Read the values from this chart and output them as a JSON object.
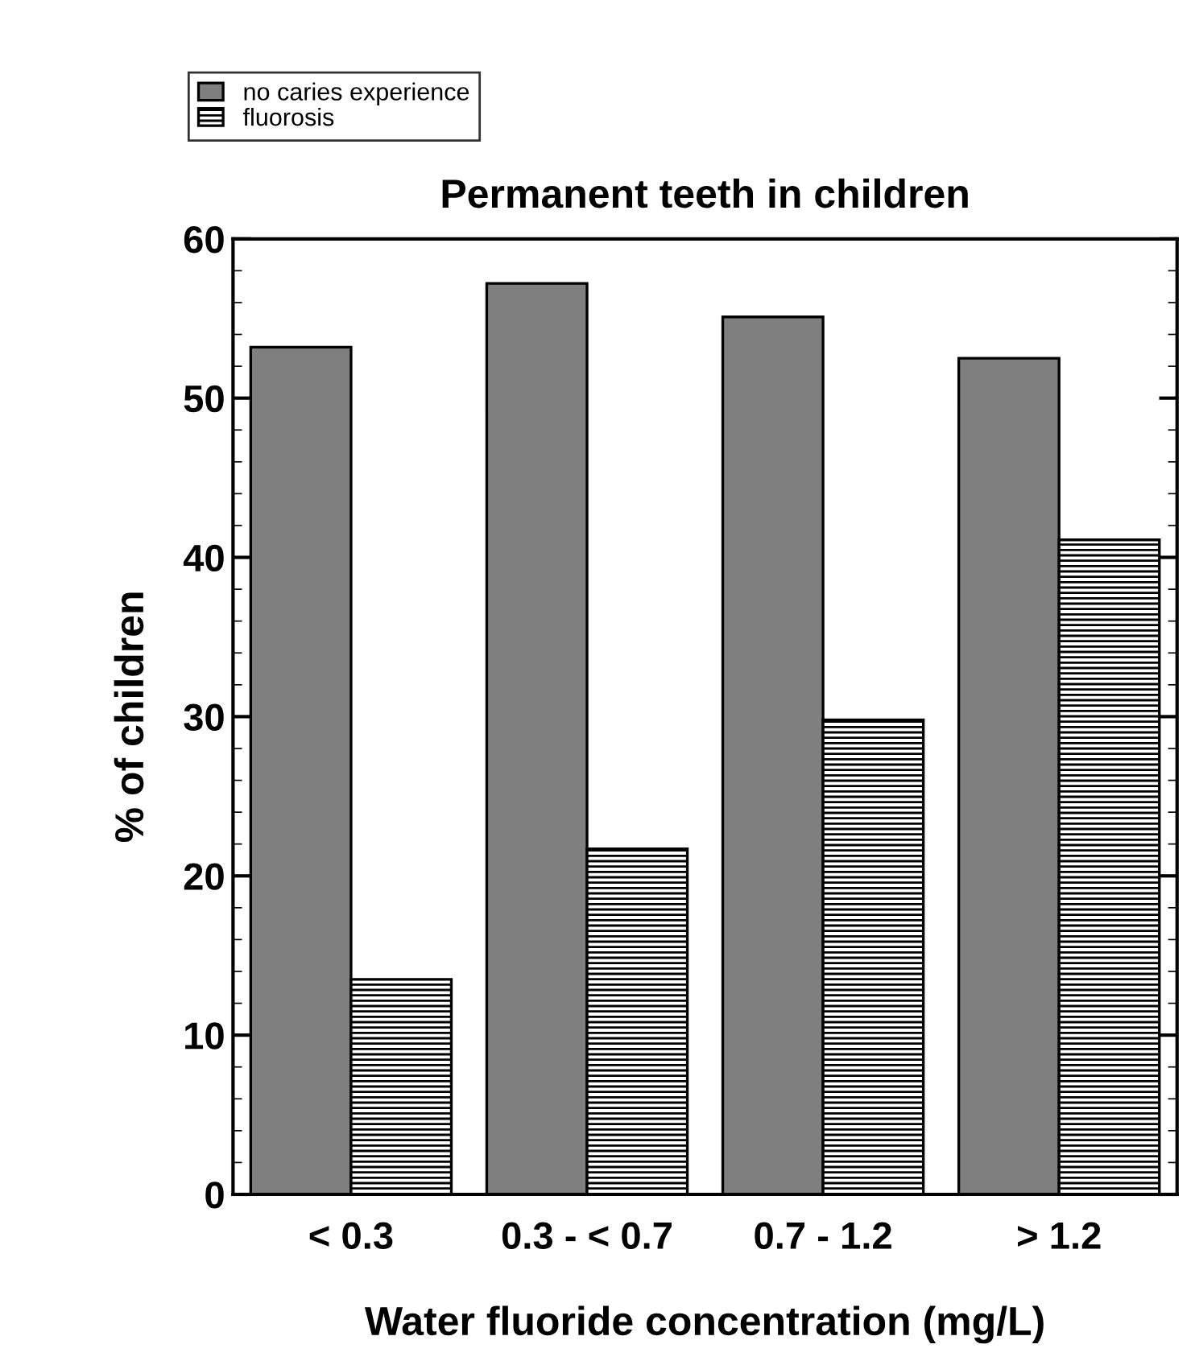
{
  "chart_data": {
    "type": "bar",
    "title": "Permanent teeth in children",
    "xlabel": "Water fluoride concentration (mg/L)",
    "ylabel": "% of children",
    "categories": [
      "< 0.3",
      "0.3 - < 0.7",
      "0.7 - 1.2",
      "> 1.2"
    ],
    "series": [
      {
        "name": "no caries experience",
        "color": "#7f7f7f",
        "values": [
          53.2,
          57.2,
          55.1,
          52.5
        ]
      },
      {
        "name": "fluorosis",
        "color": "#000000",
        "values": [
          13.5,
          21.7,
          29.8,
          41.1
        ]
      }
    ],
    "ylim": [
      0,
      60
    ],
    "yticks": [
      0,
      10,
      20,
      30,
      40,
      50,
      60
    ],
    "grid": false,
    "legend": "top left"
  }
}
